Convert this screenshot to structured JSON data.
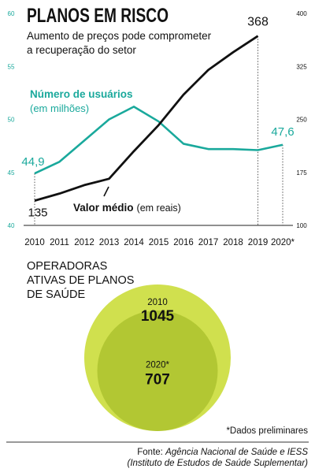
{
  "header": {
    "title": "PLANOS EM RISCO",
    "subtitle_line1": "Aumento de preços pode comprometer",
    "subtitle_line2": "a recuperação do setor"
  },
  "chart_data": [
    {
      "type": "line",
      "x": [
        "2010",
        "2011",
        "2012",
        "2013",
        "2014",
        "2015",
        "2016",
        "2017",
        "2018",
        "2019",
        "2020*"
      ],
      "left_axis": {
        "ticks": [
          "60",
          "55",
          "50",
          "45",
          "40"
        ],
        "ylim": [
          40,
          60
        ]
      },
      "right_axis": {
        "ticks": [
          "400",
          "325",
          "250",
          "175",
          "100"
        ],
        "ylim": [
          100,
          400
        ]
      },
      "series": [
        {
          "name": "Número de usuários",
          "unit": "(em milhões)",
          "axis": "left",
          "color": "#1aa99c",
          "values": [
            44.9,
            46.0,
            48.0,
            50.0,
            51.2,
            49.8,
            47.7,
            47.2,
            47.2,
            47.1,
            47.6
          ],
          "start_label": "44,9",
          "end_label": "47,6"
        },
        {
          "name": "Valor médio",
          "unit": "(em reais)",
          "axis": "right",
          "color": "#111111",
          "values": [
            135,
            145,
            157,
            166,
            205,
            242,
            285,
            320,
            345,
            368,
            null
          ],
          "start_label": "135",
          "peak_label": "368"
        }
      ]
    },
    {
      "type": "bubble",
      "title_lines": [
        "OPERADORAS",
        "ATIVAS DE PLANOS",
        "DE SAÚDE"
      ],
      "items": [
        {
          "label": "2010",
          "value": 1045,
          "value_text": "1045",
          "color": "#d0e04e"
        },
        {
          "label": "2020*",
          "value": 707,
          "value_text": "707",
          "color": "#b2c733"
        }
      ]
    }
  ],
  "footnote": "*Dados preliminares",
  "source_line1_prefix": "Fonte: ",
  "source_line1_text": "Agência Nacional de Saúde e IESS",
  "source_line2": "(Instituto de Estudos de Saúde Suplementar)"
}
